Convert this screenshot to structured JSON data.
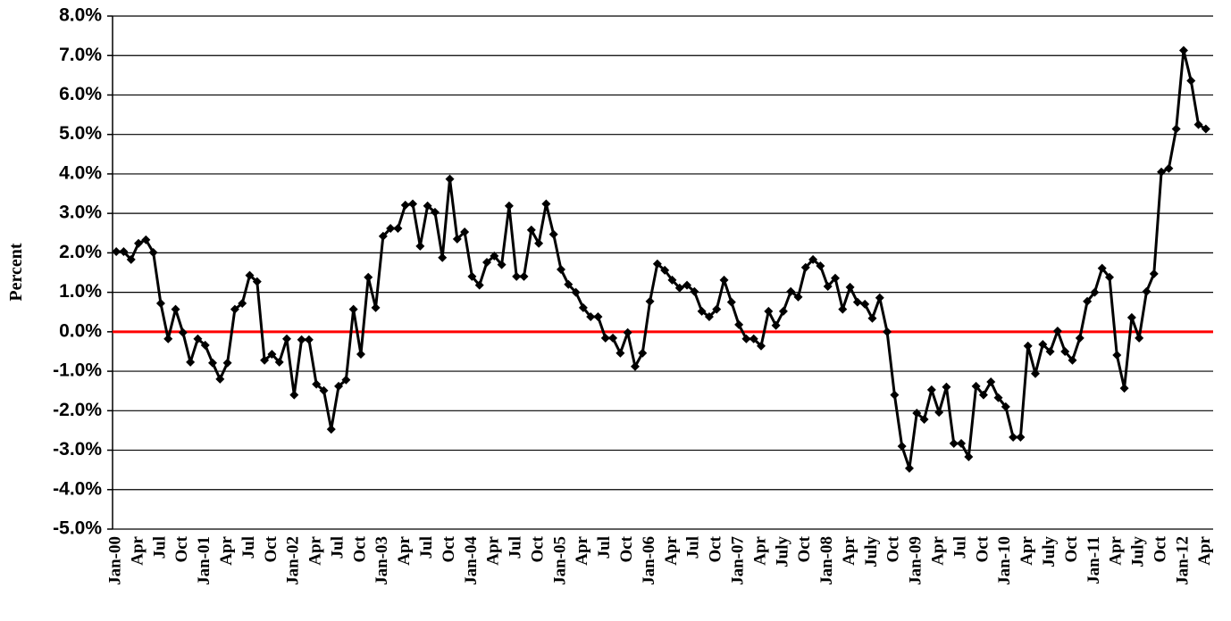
{
  "chart_data": {
    "type": "line",
    "y_label": "Percent",
    "categories": [
      "Jan-00",
      null,
      null,
      "Apr",
      null,
      null,
      "Jul",
      null,
      null,
      "Oct",
      null,
      null,
      "Jan-01",
      null,
      null,
      "Apr",
      null,
      null,
      "Jul",
      null,
      null,
      "Oct",
      null,
      null,
      "Jan-02",
      null,
      null,
      "Apr",
      null,
      null,
      "Jul",
      null,
      null,
      "Oct",
      null,
      null,
      "Jan-03",
      null,
      null,
      "Apr",
      null,
      null,
      "Jul",
      null,
      null,
      "Oct",
      null,
      null,
      "Jan-04",
      null,
      null,
      "Apr",
      null,
      null,
      "Jul",
      null,
      null,
      "Oct",
      null,
      null,
      "Jan-05",
      null,
      null,
      "Apr",
      null,
      null,
      "Jul",
      null,
      null,
      "Oct",
      null,
      null,
      "Jan-06",
      null,
      null,
      "Apr",
      null,
      null,
      "Jul",
      null,
      null,
      "Oct",
      null,
      null,
      "Jan-07",
      null,
      null,
      "Apr",
      null,
      null,
      "July",
      null,
      null,
      "Oct",
      null,
      null,
      "Jan-08",
      null,
      null,
      "Apr",
      null,
      null,
      "July",
      null,
      null,
      "Oct",
      null,
      null,
      "Jan-09",
      null,
      null,
      "Apr",
      null,
      null,
      "Jul",
      null,
      null,
      "Oct",
      null,
      null,
      "Jan-10",
      null,
      null,
      "Apr",
      null,
      null,
      "July",
      null,
      null,
      "Oct",
      null,
      null,
      "Jan-11",
      null,
      null,
      "Apr",
      null,
      null,
      "July",
      null,
      null,
      "Oct",
      null,
      null,
      "Jan-12",
      null,
      null,
      "Apr"
    ],
    "series": [
      {
        "color": "#000000",
        "values": [
          2.03,
          2.03,
          1.83,
          2.24,
          2.33,
          2.01,
          0.72,
          -0.18,
          0.57,
          -0.02,
          -0.77,
          -0.18,
          -0.34,
          -0.79,
          -1.2,
          -0.79,
          0.57,
          0.72,
          1.43,
          1.27,
          -0.72,
          -0.57,
          -0.77,
          -0.18,
          -1.6,
          -0.2,
          -0.2,
          -1.33,
          -1.49,
          -2.47,
          -1.38,
          -1.22,
          0.57,
          -0.57,
          1.38,
          0.61,
          2.42,
          2.62,
          2.62,
          3.21,
          3.24,
          2.17,
          3.19,
          3.03,
          1.88,
          3.87,
          2.35,
          2.53,
          1.4,
          1.18,
          1.76,
          1.92,
          1.7,
          3.19,
          1.4,
          1.4,
          2.58,
          2.24,
          3.24,
          2.47,
          1.58,
          1.2,
          1.0,
          0.61,
          0.38,
          0.38,
          -0.16,
          -0.16,
          -0.54,
          -0.02,
          -0.88,
          -0.54,
          0.77,
          1.72,
          1.56,
          1.31,
          1.11,
          1.18,
          1.02,
          0.52,
          0.38,
          0.57,
          1.31,
          0.75,
          0.18,
          -0.18,
          -0.18,
          -0.36,
          0.52,
          0.16,
          0.52,
          1.02,
          0.88,
          1.63,
          1.83,
          1.67,
          1.15,
          1.36,
          0.57,
          1.13,
          0.75,
          0.7,
          0.34,
          0.86,
          0.0,
          -1.6,
          -2.9,
          -3.46,
          -2.06,
          -2.22,
          -1.47,
          -2.04,
          -1.4,
          -2.83,
          -2.83,
          -3.17,
          -1.38,
          -1.6,
          -1.27,
          -1.67,
          -1.9,
          -2.67,
          -2.67,
          -0.36,
          -1.06,
          -0.32,
          -0.5,
          0.02,
          -0.5,
          -0.72,
          -0.16,
          0.77,
          1.0,
          1.61,
          1.38,
          -0.59,
          -1.43,
          0.36,
          -0.16,
          1.02,
          1.47,
          4.05,
          4.14,
          5.14,
          7.13,
          6.36,
          5.25,
          5.14
        ]
      }
    ],
    "ylim": [
      -5,
      8
    ],
    "yticks": [
      {
        "value": 8,
        "label": "8.0%"
      },
      {
        "value": 7,
        "label": "7.0%"
      },
      {
        "value": 6,
        "label": "6.0%"
      },
      {
        "value": 5,
        "label": "5.0%"
      },
      {
        "value": 4,
        "label": "4.0%"
      },
      {
        "value": 3,
        "label": "3.0%"
      },
      {
        "value": 2,
        "label": "2.0%"
      },
      {
        "value": 1,
        "label": "1.0%"
      },
      {
        "value": 0,
        "label": "0.0%"
      },
      {
        "value": -1,
        "label": "-1.0%"
      },
      {
        "value": -2,
        "label": "-2.0%"
      },
      {
        "value": -3,
        "label": "-3.0%"
      },
      {
        "value": -4,
        "label": "-4.0%"
      },
      {
        "value": -5,
        "label": "-5.0%"
      }
    ],
    "grid": true,
    "zero_line_color": "#ff0000"
  }
}
